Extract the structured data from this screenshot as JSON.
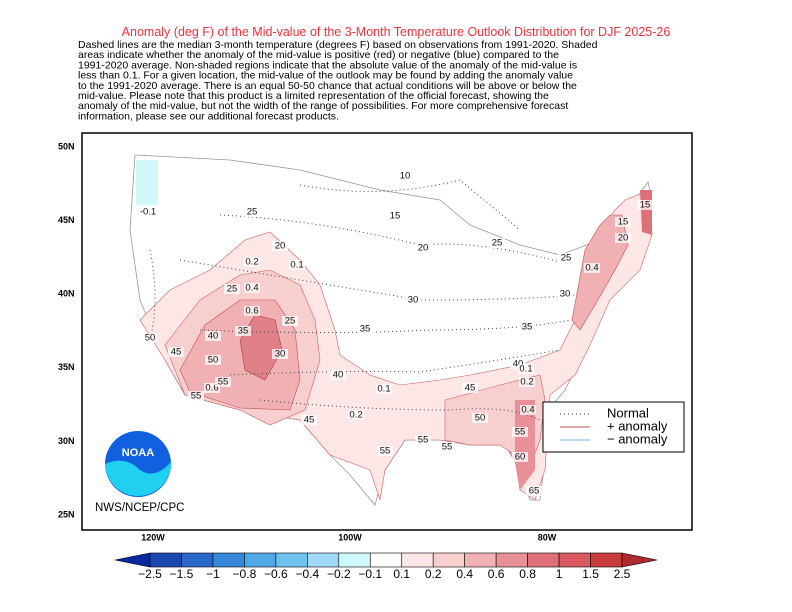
{
  "title": "Anomaly (deg F) of the Mid-value of the 3-Month Temperature Outlook Distribution for DJF 2025-26",
  "description": [
    "Dashed lines are the median 3-month temperature (degrees F) based on observations from 1991-2020.  Shaded",
    "areas indicate whether the anomaly of the mid-value is positive (red) or negative (blue) compared to the",
    "1991-2020 average.   Non-shaded regions indicate that the absolute value of the anomaly of the mid-value is",
    "less than 0.1.   For a given location, the mid-value of the outlook may be found by adding the anomaly value",
    "to the 1991-2020 average. There is an equal 50-50 chance that actual conditions will be above or below the",
    "mid-value. Please note that this product is a limited representation of the official forecast, showing the",
    "anomaly of the mid-value, but not the width of the range of possibilities. For more comprehensive forecast",
    "information, please see our additional forecast products."
  ],
  "lat_labels": [
    "50N",
    "45N",
    "40N",
    "35N",
    "30N",
    "25N"
  ],
  "lon_labels": [
    "120W",
    "100W",
    "80W"
  ],
  "contour_labels": [
    "10",
    "-0.1",
    "25",
    "15",
    "20",
    "20",
    "25",
    "0.2",
    "0.1",
    "0.4",
    "25",
    "15",
    "20",
    "15",
    "25",
    "0.4",
    "30",
    "30",
    "0.6",
    "25",
    "50",
    "40",
    "35",
    "35",
    "35",
    "45",
    "50",
    "30",
    "40",
    "40",
    "0.1",
    "0.2",
    "0.1",
    "45",
    "0.6",
    "55",
    "55",
    "0.2",
    "45",
    "50",
    "0.4",
    "55",
    "55",
    "55",
    "55",
    "60",
    "65"
  ],
  "legend": [
    "Normal",
    "+ anomaly",
    "− anomaly"
  ],
  "logo_text": "NOAA",
  "agency": "NWS/NCEP/CPC",
  "colorbar": {
    "labels": [
      "−2.5",
      "−1.5",
      "−1",
      "−0.8",
      "−0.6",
      "−0.4",
      "−0.2",
      "−0.1",
      "0.1",
      "0.2",
      "0.4",
      "0.6",
      "0.8",
      "1",
      "1.5",
      "2.5"
    ],
    "colors": [
      "#0a28a0",
      "#1848b0",
      "#2868c8",
      "#3888d8",
      "#50a8e8",
      "#70c0f0",
      "#a0d8f8",
      "#d0f8f8",
      "#ffffff",
      "#fde6e6",
      "#f8cfcf",
      "#f0b0b4",
      "#e89098",
      "#e07078",
      "#d85860",
      "#c83c40",
      "#b02830"
    ]
  }
}
